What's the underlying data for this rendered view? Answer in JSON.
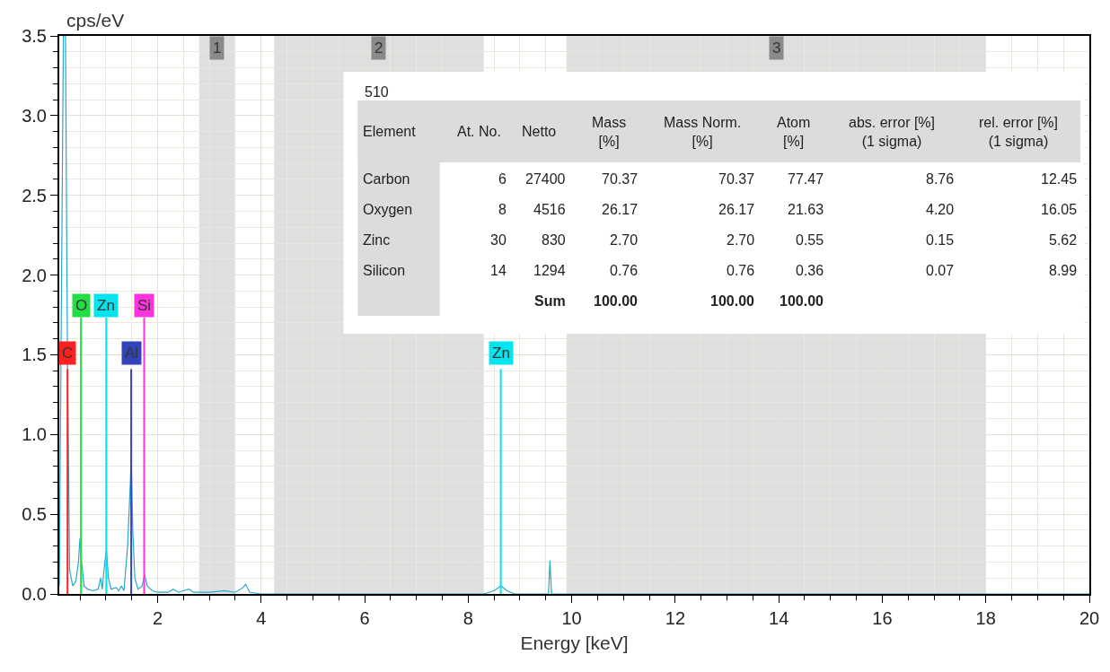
{
  "chart_data": {
    "type": "line",
    "xlabel": "Energy [keV]",
    "ylabel": "cps/eV",
    "xlim": [
      0.1,
      20
    ],
    "ylim": [
      0,
      3.5
    ],
    "xticks": [
      2,
      4,
      6,
      8,
      10,
      12,
      14,
      16,
      18,
      20
    ],
    "yticks": [
      {
        "value": 0,
        "label": "0.0"
      },
      {
        "value": 0.5,
        "label": "0.5"
      },
      {
        "value": 1,
        "label": "1.0"
      },
      {
        "value": 1.5,
        "label": "1.5"
      },
      {
        "value": 2,
        "label": "2.0"
      },
      {
        "value": 2.5,
        "label": "2.5"
      },
      {
        "value": 3,
        "label": "3.0"
      },
      {
        "value": 3.5,
        "label": "3.5"
      }
    ],
    "grid": true,
    "marker": "none",
    "line_style": "solid",
    "x": [
      0.1,
      0.18,
      0.22,
      0.26,
      0.3,
      0.36,
      0.42,
      0.47,
      0.5,
      0.53,
      0.58,
      0.65,
      0.75,
      0.85,
      0.9,
      0.93,
      0.98,
      1.01,
      1.05,
      1.1,
      1.2,
      1.25,
      1.3,
      1.35,
      1.42,
      1.46,
      1.49,
      1.52,
      1.56,
      1.62,
      1.7,
      1.75,
      1.8,
      1.9,
      2.0,
      2.2,
      2.3,
      2.4,
      2.6,
      2.7,
      3.0,
      3.3,
      3.5,
      3.65,
      3.7,
      3.78,
      4.0,
      6.0,
      8.3,
      8.5,
      8.63,
      8.75,
      8.9,
      9.55,
      9.58,
      9.61,
      20
    ],
    "series": [
      {
        "color": "#2aa8c8",
        "values": [
          0.05,
          3.5,
          3.5,
          1.4,
          0.15,
          0.05,
          0.08,
          0.2,
          0.35,
          0.2,
          0.05,
          0.03,
          0.02,
          0.03,
          0.1,
          0.03,
          0.2,
          0.28,
          0.1,
          0.03,
          0.04,
          0.02,
          0.05,
          0.02,
          0.3,
          0.6,
          0.85,
          0.4,
          0.1,
          0.03,
          0.05,
          0.12,
          0.05,
          0.02,
          0.01,
          0.01,
          0.03,
          0.01,
          0.03,
          0.01,
          0.01,
          0.02,
          0.01,
          0.04,
          0.06,
          0.01,
          0.0,
          0.0,
          0.0,
          0.02,
          0.05,
          0.02,
          0.0,
          0.0,
          0.21,
          0.0,
          0.0
        ]
      }
    ],
    "ref_lines": [
      {
        "axis": "x",
        "value": 0.26,
        "label": "C",
        "color": "#ff2020"
      },
      {
        "axis": "x",
        "value": 0.52,
        "label": "O",
        "color": "#22dd44"
      },
      {
        "axis": "x",
        "value": 1.01,
        "label": "Zn",
        "color": "#00e5ee"
      },
      {
        "axis": "x",
        "value": 1.49,
        "label": "Al",
        "color": "#3344bb"
      },
      {
        "axis": "x",
        "value": 1.74,
        "label": "Si",
        "color": "#ff33dd"
      },
      {
        "axis": "x",
        "value": 8.63,
        "label": "Zn",
        "color": "#00e5ee"
      }
    ],
    "bands": [
      {
        "axis": "x",
        "from": 2.8,
        "to": 3.5,
        "label": "1",
        "color": "#c4c4c4"
      },
      {
        "axis": "x",
        "from": 4.25,
        "to": 8.3,
        "label": "2",
        "color": "#c4c4c4"
      },
      {
        "axis": "x",
        "from": 9.9,
        "to": 18.0,
        "label": "3",
        "color": "#c4c4c4"
      }
    ],
    "annotations": [
      "510",
      "Element",
      "At. No.",
      "Netto",
      "Mass\n[%]",
      "Mass Norm.\n[%]",
      "Atom\n[%]",
      "abs. error [%]\n(1 sigma)",
      "rel. error [%]\n(1 sigma)",
      "Carbon",
      "6",
      "27400",
      "70.37",
      "70.37",
      "77.47",
      "8.76",
      "12.45",
      "Oxygen",
      "8",
      "4516",
      "26.17",
      "26.17",
      "21.63",
      "4.20",
      "16.05",
      "Zinc",
      "30",
      "830",
      "2.70",
      "2.70",
      "0.55",
      "0.15",
      "5.62",
      "Silicon",
      "14",
      "1294",
      "0.76",
      "0.76",
      "0.36",
      "0.07",
      "8.99",
      "Sum",
      "100.00",
      "100.00",
      "100.00"
    ]
  }
}
